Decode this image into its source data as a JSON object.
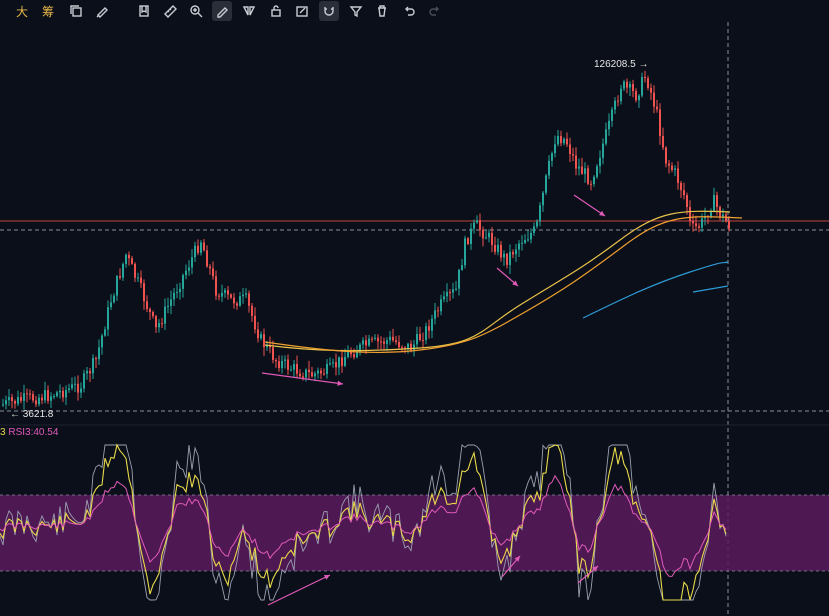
{
  "toolbar": {
    "items": [
      {
        "name": "chinese-char-da",
        "label": "大",
        "kind": "text"
      },
      {
        "name": "chinese-char-chou",
        "label": "筹",
        "kind": "text"
      },
      {
        "name": "copy-icon"
      },
      {
        "name": "brush-icon"
      },
      {
        "name": "bookmark-icon"
      },
      {
        "name": "ruler-icon"
      },
      {
        "name": "zoom-in-icon"
      },
      {
        "name": "pencil-icon",
        "active": true
      },
      {
        "name": "mirror-icon"
      },
      {
        "name": "lock-icon"
      },
      {
        "name": "edit-icon"
      },
      {
        "name": "magnet-icon",
        "active": true
      },
      {
        "name": "filter-icon"
      },
      {
        "name": "trash-icon"
      },
      {
        "name": "undo-icon"
      },
      {
        "name": "redo-icon",
        "disabled": true
      }
    ]
  },
  "price_labels": {
    "high": "126208.5",
    "low": "3621.8"
  },
  "rsi_legend": {
    "prefix": "3",
    "text": "RSI3:40.54"
  },
  "chart_data": {
    "type": "candlestick",
    "title": "",
    "annotations": {
      "high_marker": 126208.5,
      "low_marker": 3621.8
    },
    "colors": {
      "up": "#26a69a",
      "down": "#ef5350",
      "ma_yellow": "#e8c24a",
      "ma_orange": "#f0a030",
      "ma_blue": "#2f9bd6",
      "horizontal_line": "#c2443f",
      "rsi_band": "#5a1a5e",
      "rsi_line_main": "#e8d94a",
      "rsi_line_pink": "#e05ab8",
      "rsi_line_grey": "#9aa0b0",
      "trend_arrow": "#e05ab8"
    },
    "rsi": {
      "value": 40.54,
      "label": "RSI3",
      "band": [
        30,
        70
      ]
    }
  }
}
